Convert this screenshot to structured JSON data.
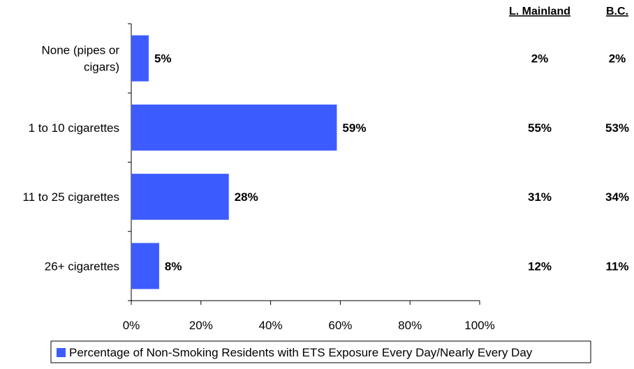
{
  "chart_data": {
    "type": "bar",
    "orientation": "horizontal",
    "categories": [
      "None (pipes or cigars)",
      "1 to 10 cigarettes",
      "11 to 25 cigarettes",
      "26+ cigarettes"
    ],
    "category_lines": [
      [
        "None (pipes or",
        "cigars)"
      ],
      [
        "1 to 10 cigarettes"
      ],
      [
        "11 to 25 cigarettes"
      ],
      [
        "26+ cigarettes"
      ]
    ],
    "series": [
      {
        "name": "Percentage of Non-Smoking Residents with ETS Exposure Every Day/Nearly Every Day",
        "values": [
          5,
          59,
          28,
          8
        ],
        "labels": [
          "5%",
          "59%",
          "28%",
          "8%"
        ],
        "color": "#3d5cff"
      }
    ],
    "xlim": [
      0,
      100
    ],
    "xticks": [
      "0%",
      "20%",
      "40%",
      "60%",
      "80%",
      "100%"
    ],
    "legend": "bottom",
    "grid": false,
    "comparison_columns": [
      {
        "header": "L. Mainland",
        "values": [
          "2%",
          "55%",
          "31%",
          "12%"
        ]
      },
      {
        "header": "B.C.",
        "values": [
          "2%",
          "53%",
          "34%",
          "11%"
        ]
      }
    ]
  }
}
